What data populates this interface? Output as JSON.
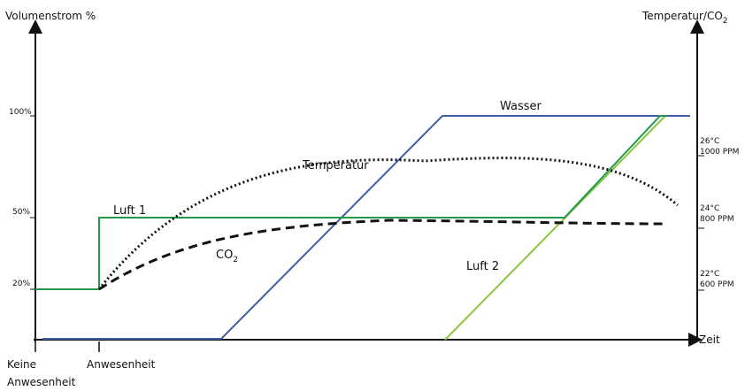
{
  "y_left_axis": {
    "title": "Volumenstrom %",
    "ticks": [
      {
        "label": "100%",
        "value": 100
      },
      {
        "label": "50%",
        "value": 50
      },
      {
        "label": "20%",
        "value": 20
      }
    ]
  },
  "y_right_axis": {
    "title_main": "Temperatur/CO",
    "title_sub": "2",
    "ticks": [
      {
        "temp": "26°C",
        "ppm": "1000 PPM"
      },
      {
        "temp": "24°C",
        "ppm": "800 PPM"
      },
      {
        "temp": "22°C",
        "ppm": "600 PPM"
      }
    ]
  },
  "x_axis": {
    "title": "Zeit",
    "markers": [
      {
        "line1": "Keine",
        "line2": "Anwesenheit"
      },
      {
        "line1": "Anwesenheit",
        "line2": ""
      }
    ]
  },
  "curves": {
    "wasser": {
      "label": "Wasser",
      "color": "#3f5fa8"
    },
    "luft1": {
      "label": "Luft 1",
      "color": "#1e9a4a"
    },
    "luft2": {
      "label": "Luft 2",
      "color": "#8cc63f"
    },
    "temperatur": {
      "label": "Temperatur",
      "color": "#111111"
    },
    "co2": {
      "label_main": "CO",
      "label_sub": "2",
      "color": "#111111"
    }
  }
}
